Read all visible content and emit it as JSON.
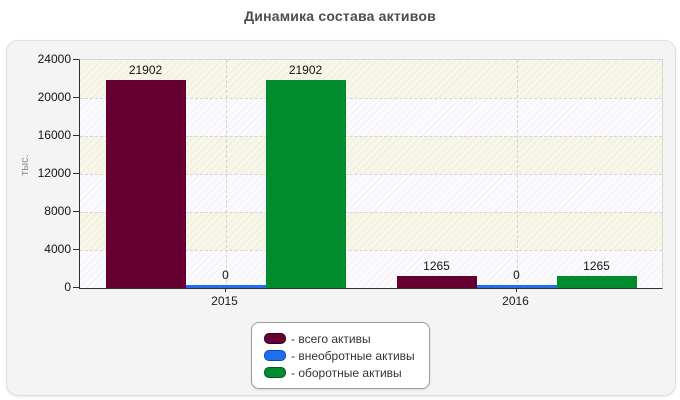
{
  "chart_data": {
    "type": "bar",
    "title": "Динамика состава активов",
    "ylabel": "тыс.",
    "ylim": [
      0,
      24000
    ],
    "ytick_step": 4000,
    "yticks": [
      0,
      4000,
      8000,
      12000,
      16000,
      20000,
      24000
    ],
    "grid": true,
    "legend_position": "bottom-center",
    "categories": [
      "2015",
      "2016"
    ],
    "series": [
      {
        "key": "total",
        "name": "всего активы",
        "color": "#660033",
        "border_color": "#3f0020",
        "values": [
          21902,
          1265
        ]
      },
      {
        "key": "noncurrent",
        "name": "внеобротные активы",
        "color": "#1E6FF0",
        "border_color": "#0d4ab2",
        "values": [
          0,
          0
        ]
      },
      {
        "key": "current",
        "name": "оборотные активы",
        "color": "#008B2D",
        "border_color": "#00591d",
        "values": [
          21902,
          1265
        ]
      }
    ],
    "legend_labels": [
      "- всего активы",
      "- внеобротные активы",
      "- оборотные активы"
    ],
    "data_labels": [
      [
        21902,
        0,
        21902
      ],
      [
        1265,
        0,
        1265
      ]
    ]
  },
  "colors": {
    "panel_background": "#f4f4f4",
    "panel_border": "#dedede",
    "plot_band_cream": "#f8f6e7",
    "plot_band_light": "#fbfbfe",
    "gridline": "#d4d4d4",
    "axis": "#2f2f2f",
    "title_text": "#4d4d4d",
    "y_axis_title_text": "#8c8c8c"
  }
}
